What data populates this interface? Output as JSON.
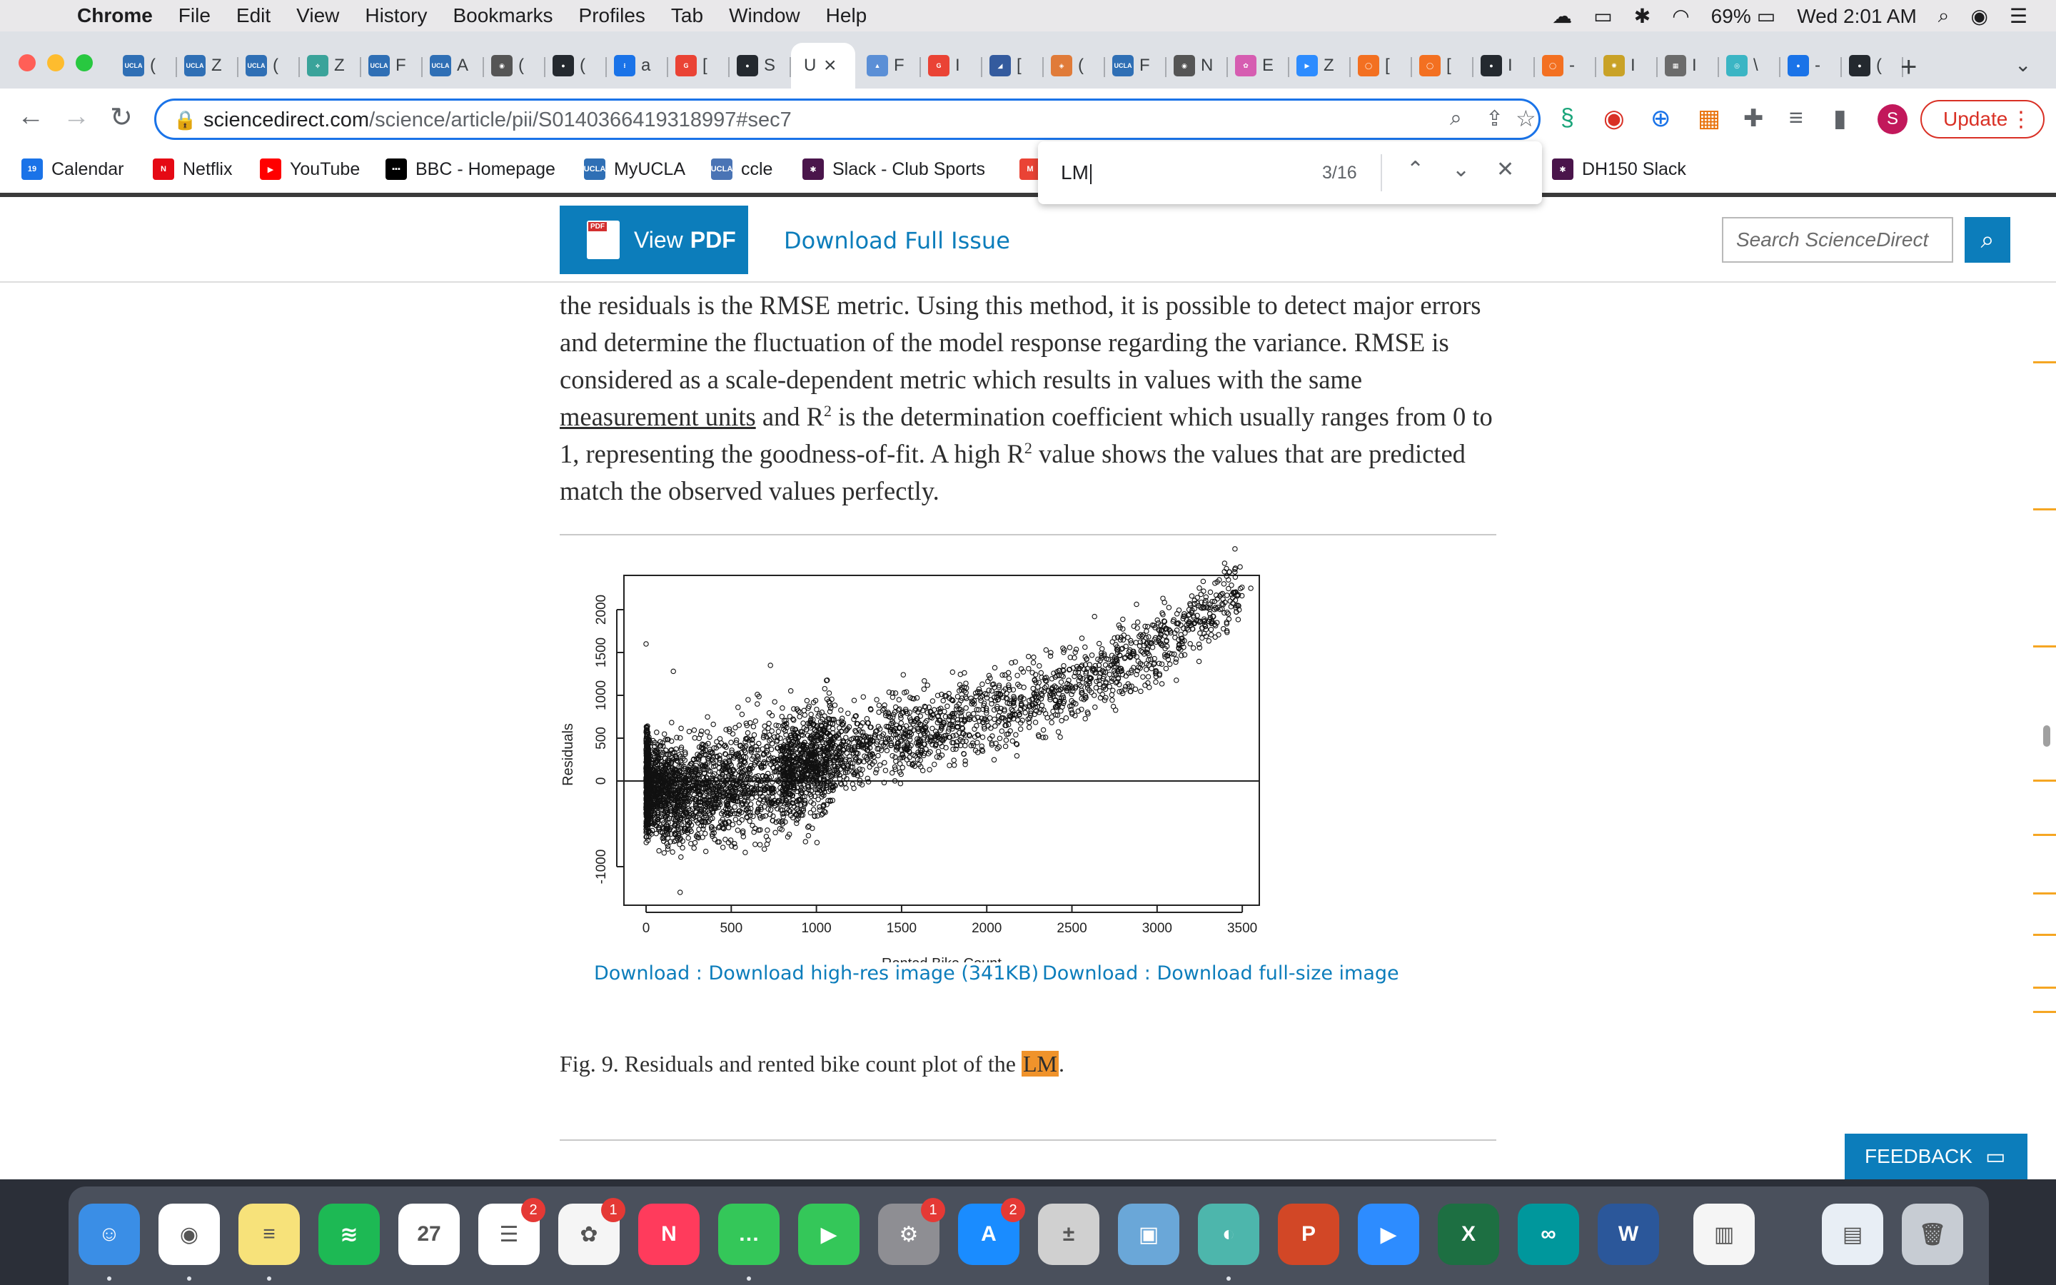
{
  "menubar": {
    "app": "Chrome",
    "menus": [
      "File",
      "Edit",
      "View",
      "History",
      "Bookmarks",
      "Profiles",
      "Tab",
      "Window",
      "Help"
    ],
    "battery": "69%",
    "clock": "Wed 2:01 AM"
  },
  "tabs": [
    {
      "fav": "UCLA",
      "t": "(",
      "c": "#2f6fb5"
    },
    {
      "fav": "UCLA",
      "t": "Z",
      "c": "#2f6fb5"
    },
    {
      "fav": "UCLA",
      "t": "(",
      "c": "#2f6fb5"
    },
    {
      "fav": "⟡",
      "t": "Z",
      "c": "#3aa39a"
    },
    {
      "fav": "UCLA",
      "t": "F",
      "c": "#2f6fb5"
    },
    {
      "fav": "UCLA",
      "t": "A",
      "c": "#2f6fb5"
    },
    {
      "fav": "◉",
      "t": "(",
      "c": "#555555"
    },
    {
      "fav": "●",
      "t": "(",
      "c": "#24292f"
    },
    {
      "fav": "⁝",
      "t": "a",
      "c": "#1a73e8"
    },
    {
      "fav": "G",
      "t": "[",
      "c": "#ea4335"
    },
    {
      "fav": "●",
      "t": "S",
      "c": "#24292f"
    },
    {
      "fav": "",
      "t": "U",
      "c": "#ffffff"
    },
    {
      "fav": "▲",
      "t": "F",
      "c": "#5b8fd6"
    },
    {
      "fav": "G",
      "t": "I",
      "c": "#ea4335"
    },
    {
      "fav": "◢",
      "t": "[",
      "c": "#345b9e"
    },
    {
      "fav": "◈",
      "t": "(",
      "c": "#e07b39"
    },
    {
      "fav": "UCLA",
      "t": "F",
      "c": "#2f6fb5"
    },
    {
      "fav": "◉",
      "t": "N",
      "c": "#555555"
    },
    {
      "fav": "✿",
      "t": "E",
      "c": "#d65db1"
    },
    {
      "fav": "▶",
      "t": "Z",
      "c": "#2d8cff"
    },
    {
      "fav": "◯",
      "t": "[",
      "c": "#f37021"
    },
    {
      "fav": "◯",
      "t": "[",
      "c": "#f37021"
    },
    {
      "fav": "●",
      "t": "I",
      "c": "#24292f"
    },
    {
      "fav": "◯",
      "t": "-",
      "c": "#f37021"
    },
    {
      "fav": "✺",
      "t": "I",
      "c": "#c9a227"
    },
    {
      "fav": "▦",
      "t": "I",
      "c": "#6b6b6b"
    },
    {
      "fav": "◎",
      "t": "\\",
      "c": "#3bb5c4"
    },
    {
      "fav": "●",
      "t": "-",
      "c": "#1a73e8"
    },
    {
      "fav": "●",
      "t": "(",
      "c": "#24292f"
    }
  ],
  "active_tab_close": "×",
  "omnibox": {
    "domain": "sciencedirect.com",
    "path": "/science/article/pii/S0140366419318997#sec7"
  },
  "update_label": "Update",
  "avatar_letter": "S",
  "bookmarks": [
    {
      "label": "Calendar",
      "icon": "19",
      "c": "#1a73e8"
    },
    {
      "label": "Netflix",
      "icon": "N",
      "c": "#e50914"
    },
    {
      "label": "YouTube",
      "icon": "▶",
      "c": "#ff0000"
    },
    {
      "label": "BBC - Homepage",
      "icon": "▪▪▪",
      "c": "#000000"
    },
    {
      "label": "MyUCLA",
      "icon": "UCLA",
      "c": "#2f6fb5"
    },
    {
      "label": "ccle",
      "icon": "UCLA",
      "c": "#4a74b5"
    },
    {
      "label": "Slack - Club Sports",
      "icon": "✱",
      "c": "#4a154b"
    },
    {
      "label": "",
      "icon": "M",
      "c": "#ea4335"
    },
    {
      "label": "DH150 Slack",
      "icon": "✱",
      "c": "#4a154b"
    }
  ],
  "findbar": {
    "query": "LM",
    "count": "3/16"
  },
  "sd": {
    "view_pdf": "View",
    "view_pdf_bold": "PDF",
    "download_issue": "Download Full Issue",
    "search_placeholder": "Search ScienceDirect"
  },
  "article": {
    "p1": "the residuals is the RMSE metric. Using this method, it is possible to detect major errors and determine the fluctuation of the model response regarding the variance. RMSE is considered as a scale-dependent metric which results in values with the same ",
    "link": "measurement units",
    "p2": " and R",
    "sup": "2",
    "p3": " is the determination coefficient which usually ranges from 0 to 1, representing the goodness-of-fit. A high R",
    "p4": " value shows the values that are predicted match the observed values perfectly."
  },
  "figure": {
    "download_hires": "Download : Download high-res image (341KB)",
    "download_full": "Download : Download full-size image",
    "caption_pre": "Fig. 9. Residuals and rented bike count plot of the ",
    "caption_hl": "LM",
    "caption_post": "."
  },
  "chart_data": {
    "type": "scatter",
    "xlabel": "Rented Bike Count",
    "ylabel": "Residuals",
    "xlim": [
      -130,
      3600
    ],
    "ylim": [
      -1450,
      2400
    ],
    "xticks": [
      0,
      500,
      1000,
      1500,
      2000,
      2500,
      3000,
      3500
    ],
    "yticks": [
      -1000,
      0,
      500,
      1000,
      1500,
      2000
    ],
    "reference_line_y": 0,
    "marker": "open-circle",
    "grid": false,
    "trend_points": [
      {
        "x": 0,
        "y": -100
      },
      {
        "x": 250,
        "y": -150
      },
      {
        "x": 500,
        "y": -50
      },
      {
        "x": 1000,
        "y": 250
      },
      {
        "x": 1500,
        "y": 550
      },
      {
        "x": 2000,
        "y": 800
      },
      {
        "x": 2500,
        "y": 1100
      },
      {
        "x": 3000,
        "y": 1550
      },
      {
        "x": 3500,
        "y": 2250
      }
    ],
    "visible_outliers": [
      {
        "x": 0,
        "y": 1600
      },
      {
        "x": 160,
        "y": 1280
      },
      {
        "x": 730,
        "y": 1350
      },
      {
        "x": 3550,
        "y": 2250
      },
      {
        "x": 200,
        "y": -1300
      }
    ]
  },
  "feedback_label": "FEEDBACK",
  "dock": [
    {
      "n": "finder",
      "c": "#3a8ee6",
      "g": "☺"
    },
    {
      "n": "chrome",
      "c": "#ffffff",
      "g": "◉"
    },
    {
      "n": "notes",
      "c": "#f7e27a",
      "g": "≡"
    },
    {
      "n": "spotify",
      "c": "#1db954",
      "g": "≋"
    },
    {
      "n": "calendar",
      "c": "#ffffff",
      "g": "27"
    },
    {
      "n": "reminders",
      "c": "#ffffff",
      "g": "☰",
      "badge": "2"
    },
    {
      "n": "photos",
      "c": "#f5f5f5",
      "g": "✿",
      "badge": "1"
    },
    {
      "n": "news",
      "c": "#ff3b5c",
      "g": "N"
    },
    {
      "n": "messages",
      "c": "#34c759",
      "g": "…"
    },
    {
      "n": "facetime",
      "c": "#34c759",
      "g": "▶"
    },
    {
      "n": "system-preferences",
      "c": "#8e8e93",
      "g": "⚙",
      "badge": "1"
    },
    {
      "n": "app-store",
      "c": "#1a8cff",
      "g": "A",
      "badge": "2"
    },
    {
      "n": "calculator",
      "c": "#d0d0d0",
      "g": "±"
    },
    {
      "n": "preview",
      "c": "#6aa7d8",
      "g": "▣"
    },
    {
      "n": "vpn",
      "c": "#4db6ac",
      "g": "◐"
    },
    {
      "n": "powerpoint",
      "c": "#d24726",
      "g": "P"
    },
    {
      "n": "zoom",
      "c": "#2d8cff",
      "g": "▶"
    },
    {
      "n": "excel",
      "c": "#1d6f42",
      "g": "X"
    },
    {
      "n": "arduino",
      "c": "#00979c",
      "g": "∞"
    },
    {
      "n": "word",
      "c": "#2b579a",
      "g": "W"
    },
    {
      "n": "numbers",
      "c": "#f5f5f5",
      "g": "▥"
    },
    {
      "n": "downloads",
      "c": "#e8eef5",
      "g": "▤"
    },
    {
      "n": "trash",
      "c": "#c7ccd3",
      "g": "🗑"
    }
  ]
}
